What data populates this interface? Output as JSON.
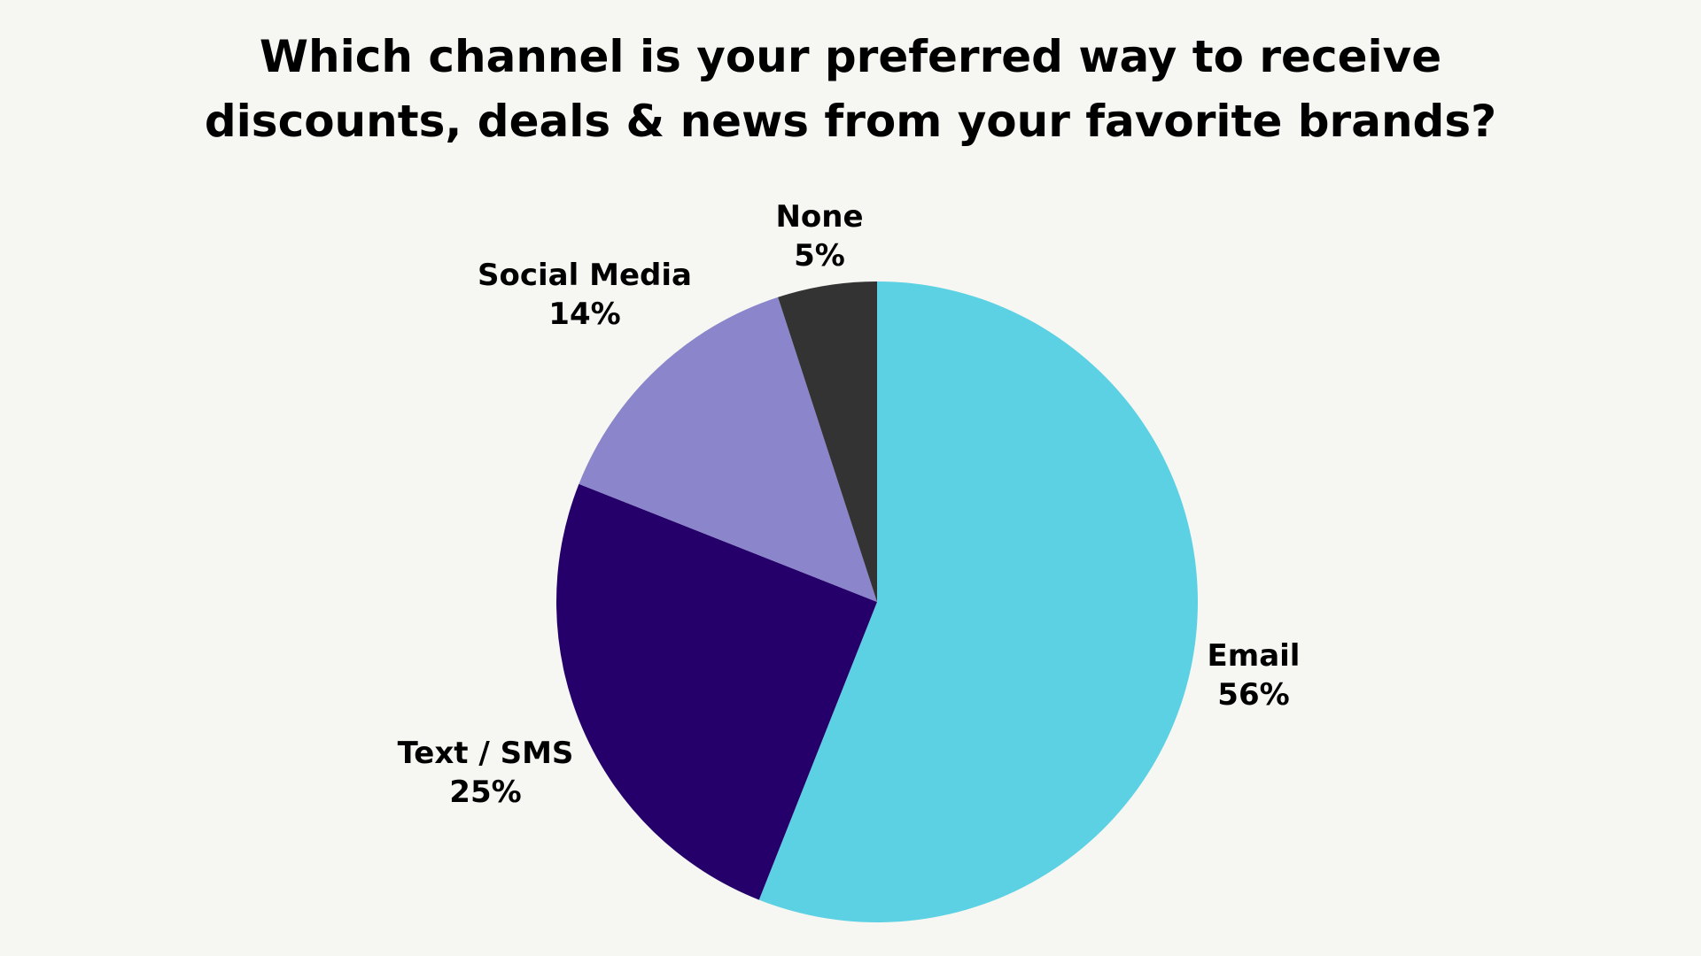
{
  "chart_data": {
    "type": "pie",
    "title_lines": [
      "Which channel is your preferred way to receive",
      "discounts, deals & news from your favorite brands?"
    ],
    "slices": [
      {
        "label": "Email",
        "value": 56,
        "value_label": "56%",
        "color": "#5bd1e3"
      },
      {
        "label": "Text / SMS",
        "value": 25,
        "value_label": "25%",
        "color": "#25006b"
      },
      {
        "label": "Social Media",
        "value": 14,
        "value_label": "14%",
        "color": "#8b85cb"
      },
      {
        "label": "None",
        "value": 5,
        "value_label": "5%",
        "color": "#333333"
      }
    ],
    "start": "12 o'clock",
    "direction": "clockwise",
    "legend": "none"
  }
}
